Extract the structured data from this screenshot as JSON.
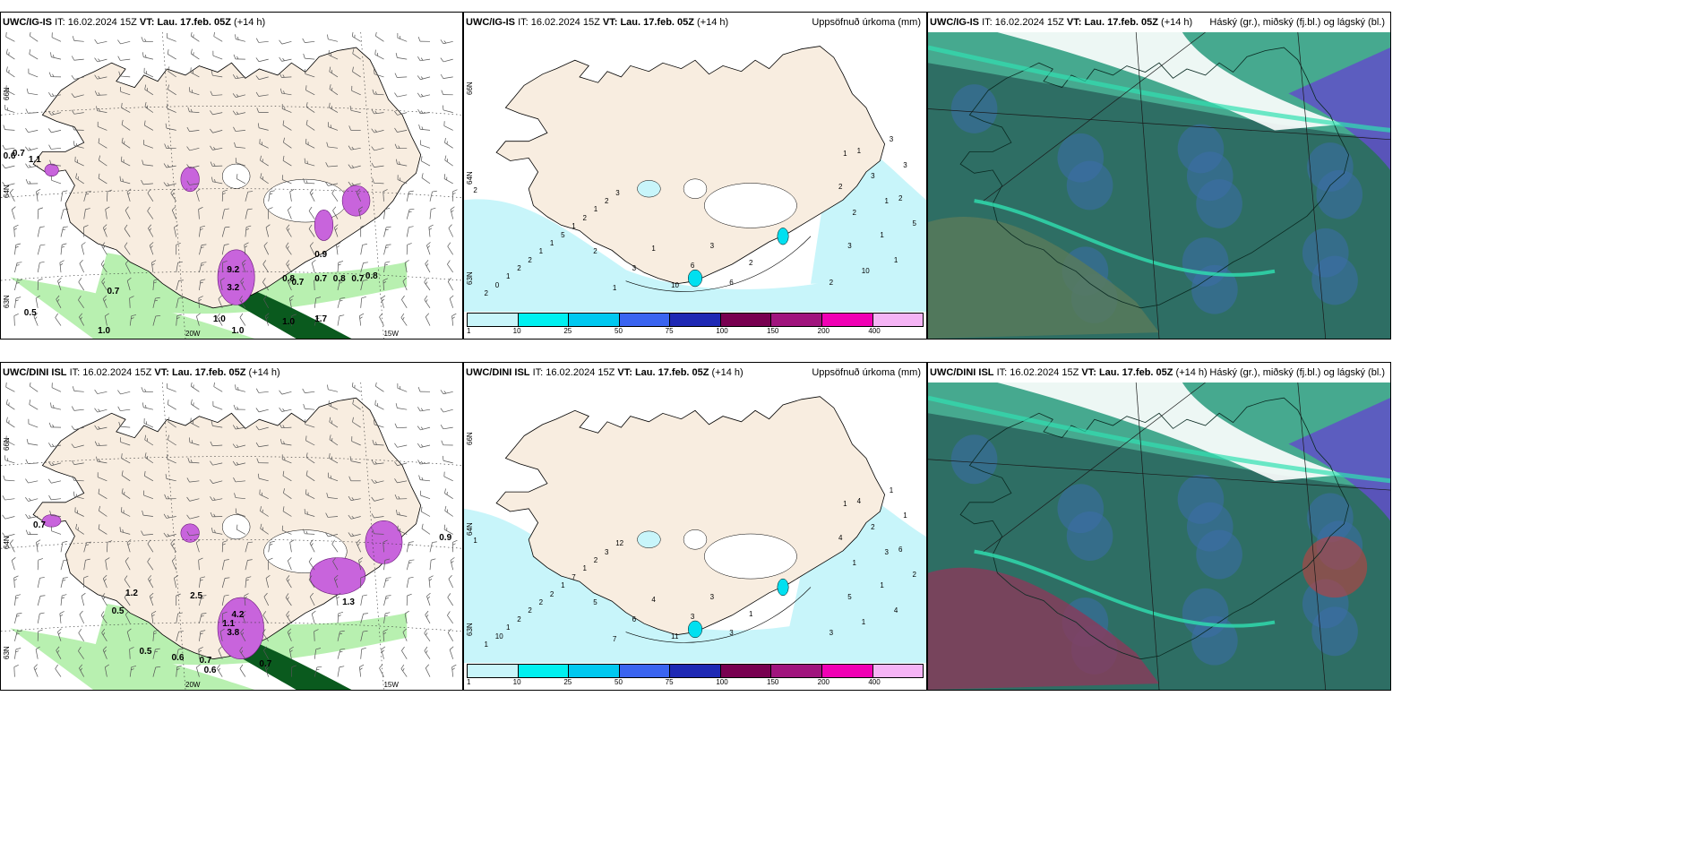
{
  "panels": [
    {
      "id": "tl",
      "model": "UWC/IG-IS",
      "it_label": "IT:",
      "it_value": "16.02.2024 15Z",
      "vt_label": "VT:",
      "vt_value": "Lau. 17.feb. 05Z",
      "lead": "(+14 h)",
      "right_title": "",
      "lat_labels": [
        "66N",
        "64N",
        "63N"
      ],
      "lon_labels": [
        "20W",
        "15W"
      ],
      "values": [
        "0.6",
        "0.7",
        "1.1",
        "0.9",
        "0.8",
        "0.7",
        "0.7",
        "0.8",
        "0.7",
        "0.8",
        "0.7",
        "0.5",
        "1.0",
        "1.0",
        "1.0",
        "1.7",
        "3.2",
        "9.2",
        "1.0"
      ]
    },
    {
      "id": "tm",
      "model": "UWC/IG-IS",
      "it_label": "IT:",
      "it_value": "16.02.2024 15Z",
      "vt_label": "VT:",
      "vt_value": "Lau. 17.feb. 05Z",
      "lead": "(+14 h)",
      "right_title": "Uppsöfnuð úrkoma (mm)",
      "lat_labels": [
        "66N",
        "64N",
        "63N"
      ],
      "numbers": [
        "2",
        "2",
        "0",
        "1",
        "2",
        "2",
        "1",
        "1",
        "5",
        "1",
        "2",
        "1",
        "2",
        "3",
        "2",
        "1",
        "3",
        "1",
        "10",
        "6",
        "3",
        "6",
        "2",
        "1",
        "2",
        "3",
        "3",
        "2",
        "1",
        "2",
        "3",
        "5",
        "10",
        "3",
        "2",
        "1",
        "1",
        "1"
      ],
      "legend": {
        "labels": [
          "1",
          "10",
          "25",
          "50",
          "75",
          "100",
          "150",
          "200",
          "400"
        ],
        "colors": [
          "#c8f5fa",
          "#00f0f0",
          "#00c8f0",
          "#3a64f0",
          "#1e28b4",
          "#780050",
          "#a0147d",
          "#f000b4",
          "#f5b4f5"
        ]
      }
    },
    {
      "id": "tr",
      "model": "UWC/IG-IS",
      "it_label": "IT:",
      "it_value": "16.02.2024 15Z",
      "vt_label": "VT:",
      "vt_value": "Lau. 17.feb. 05Z",
      "lead": "(+14 h)",
      "right_title": "Háský (gr.), miðský (fj.bl.) og lágský (bl.)"
    },
    {
      "id": "bl",
      "model": "UWC/DINI ISL",
      "it_label": "IT:",
      "it_value": "16.02.2024 15Z",
      "vt_label": "VT:",
      "vt_value": "Lau. 17.feb. 05Z",
      "lead": "(+14 h)",
      "right_title": "",
      "lat_labels": [
        "66N",
        "64N",
        "63N"
      ],
      "lon_labels": [
        "20W",
        "15W"
      ],
      "values": [
        "0.7",
        "0.9",
        "1.2",
        "0.5",
        "0.5",
        "0.6",
        "0.7",
        "0.6",
        "0.7",
        "1.1",
        "2.5",
        "1.3",
        "4.2",
        "3.8"
      ]
    },
    {
      "id": "bm",
      "model": "UWC/DINI ISL",
      "it_label": "IT:",
      "it_value": "16.02.2024 15Z",
      "vt_label": "VT:",
      "vt_value": "Lau. 17.feb. 05Z",
      "lead": "(+14 h)",
      "right_title": "Uppsöfnuð úrkoma (mm)",
      "lat_labels": [
        "66N",
        "64N",
        "63N"
      ],
      "numbers": [
        "1",
        "1",
        "10",
        "1",
        "2",
        "2",
        "2",
        "2",
        "1",
        "7",
        "1",
        "2",
        "3",
        "12",
        "5",
        "7",
        "6",
        "4",
        "11",
        "3",
        "3",
        "3",
        "1",
        "4",
        "6",
        "5",
        "1",
        "4",
        "1",
        "3",
        "2",
        "2",
        "1",
        "1",
        "1",
        "4",
        "1",
        "3"
      ],
      "legend": {
        "labels": [
          "1",
          "10",
          "25",
          "50",
          "75",
          "100",
          "150",
          "200",
          "400"
        ],
        "colors": [
          "#c8f5fa",
          "#00f0f0",
          "#00c8f0",
          "#3a64f0",
          "#1e28b4",
          "#780050",
          "#a0147d",
          "#f000b4",
          "#f5b4f5"
        ]
      }
    },
    {
      "id": "br",
      "model": "UWC/DINI ISL",
      "it_label": "IT:",
      "it_value": "16.02.2024 15Z",
      "vt_label": "VT:",
      "vt_value": "Lau. 17.feb. 05Z",
      "lead": "(+14 h)",
      "right_title": "Háský (gr.), miðský (fj.bl.) og lágský (bl.)"
    }
  ],
  "colors": {
    "land": "#f8ede0",
    "sea_white": "#ffffff",
    "precip_light": "#c8f5fa",
    "precip_cyan": "#00e0f0",
    "green_light": "#b8f0b0",
    "green_dark": "#0a5a1e",
    "magenta": "#c864dc",
    "cloud_low": "#2e6e64",
    "cloud_high": "#4ab496",
    "cloud_mid": "#3c6eaa"
  },
  "icons": {
    "wind_barb": "wind-barb-icon",
    "coastline": "coastline-icon"
  }
}
